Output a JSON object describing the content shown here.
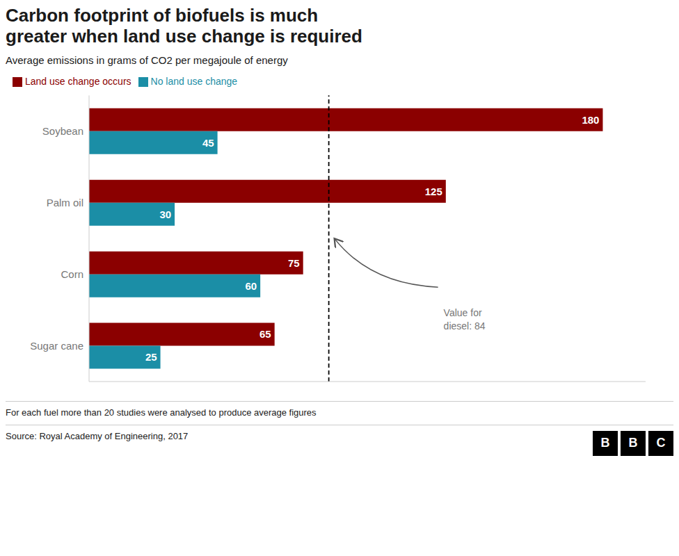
{
  "chart_data": {
    "type": "bar",
    "orientation": "horizontal",
    "title": "Carbon footprint of biofuels is much\ngreater when land use change is required",
    "subtitle": "Average emissions in grams of CO2 per megajoule of energy",
    "categories": [
      "Soybean",
      "Palm oil",
      "Corn",
      "Sugar cane"
    ],
    "series": [
      {
        "name": "Land use change occurs",
        "color": "#8B0000",
        "values": [
          180,
          125,
          75,
          65
        ]
      },
      {
        "name": "No land use change",
        "color": "#1B8EA6",
        "values": [
          45,
          30,
          60,
          25
        ]
      }
    ],
    "xlim": [
      0,
      195
    ],
    "tick_labels": "y",
    "data_labels": true,
    "grid": false,
    "legend": "upper left",
    "annotations": [
      {
        "x": 84,
        "text": "Value for\ndiesel: 84"
      }
    ],
    "footnote": "For each fuel more than 20 studies were analysed to produce average figures",
    "source": "Source: Royal Academy of Engineering, 2017",
    "logo": [
      "B",
      "B",
      "C"
    ]
  }
}
